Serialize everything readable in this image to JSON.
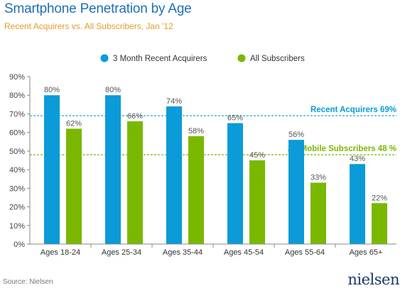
{
  "header": {
    "title": "Smartphone Penetration by Age",
    "subtitle": "Recent Acquirers vs. All Subscribers, Jan '12"
  },
  "footer": {
    "source": "Source: Nielsen",
    "logo": "nielsen"
  },
  "colors": {
    "recent": "#0a9bd8",
    "all": "#7ab800",
    "title": "#1f6fb5",
    "subtitle": "#e39a2b"
  },
  "chart_data": {
    "type": "bar",
    "title": "Smartphone Penetration by Age",
    "subtitle": "Recent Acquirers vs. All Subscribers, Jan '12",
    "categories": [
      "Ages 18-24",
      "Ages 25-34",
      "Ages 35-44",
      "Ages 45-54",
      "Ages 55-64",
      "Ages 65+"
    ],
    "series": [
      {
        "name": "3 Month Recent Acquirers",
        "values": [
          80,
          80,
          74,
          65,
          56,
          43
        ],
        "labels": [
          "80%",
          "80%",
          "74%",
          "65%",
          "56%",
          "43%"
        ],
        "color": "#0a9bd8"
      },
      {
        "name": "All Subscribers",
        "values": [
          62,
          66,
          58,
          45,
          33,
          22
        ],
        "labels": [
          "62%",
          "66%",
          "58%",
          "45%",
          "33%",
          "22%"
        ],
        "color": "#7ab800"
      }
    ],
    "y_ticks": [
      "0%",
      "10%",
      "20%",
      "30%",
      "40%",
      "50%",
      "60%",
      "70%",
      "80%",
      "90%"
    ],
    "ylim": [
      0,
      90
    ],
    "grid": false,
    "legend": "top-center",
    "reference_lines": [
      {
        "label": "Recent Acquirers 69%",
        "value": 69,
        "color": "#0a9bd8"
      },
      {
        "label": "All Mobile Subscribers 48 %",
        "value": 48,
        "color": "#7ab800"
      }
    ]
  }
}
